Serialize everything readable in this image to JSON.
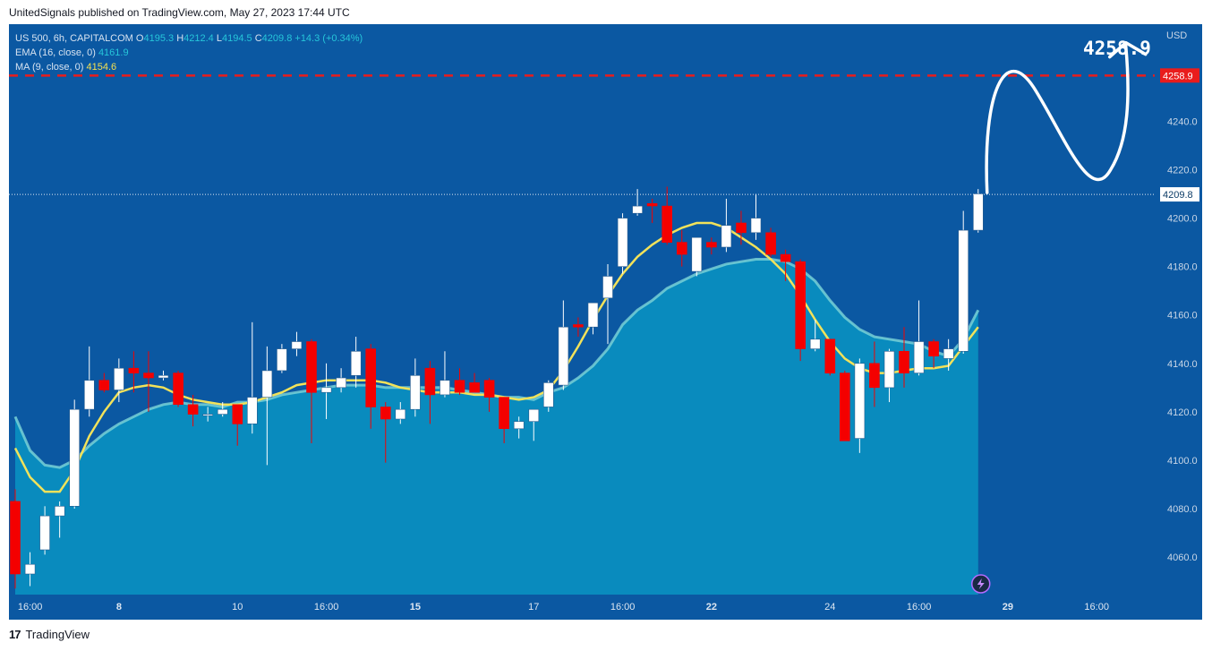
{
  "header": {
    "text": "UnitedSignals published on TradingView.com, May 27, 2023 17:44 UTC"
  },
  "legend": {
    "symbol": "US 500, 6h, CAPITALCOM",
    "o_key": "O",
    "o_val": "4195.3",
    "h_key": "H",
    "h_val": "4212.4",
    "l_key": "L",
    "l_val": "4194.5",
    "c_key": "C",
    "c_val": "4209.8",
    "change": "+14.3 (+0.34%)",
    "ema_label": "EMA (16, close, 0)",
    "ema_val": "4161.9",
    "ma_label": "MA (9, close, 0)",
    "ma_val": "4154.6"
  },
  "footer": {
    "logo": "17",
    "brand": "TradingView"
  },
  "colors": {
    "background": "#0b58a2",
    "up": "#ffffff",
    "down": "#f40000",
    "ema_fill": "#0a8ec0",
    "ema_line": "#7ed6d8",
    "ma_line": "#f2e25a",
    "target_line": "#e91c1c"
  },
  "chart_data": {
    "type": "candlestick",
    "currency": "USD",
    "y_ticks": [
      4060,
      4080,
      4100,
      4120,
      4140,
      4160,
      4180,
      4200,
      4220,
      4240
    ],
    "ylim": [
      4044.5,
      4280.1
    ],
    "x_tick_labels": [
      "16:00",
      "8",
      "10",
      "16:00",
      "15",
      "17",
      "16:00",
      "22",
      "24",
      "16:00",
      "29",
      "16:00"
    ],
    "x_tick_index": [
      1,
      7,
      15,
      21,
      27,
      35,
      41,
      47,
      55,
      61,
      67,
      73
    ],
    "x_tick_bold": [
      false,
      true,
      false,
      false,
      true,
      false,
      false,
      true,
      false,
      false,
      true,
      false
    ],
    "candles": [
      [
        4083,
        4088,
        4047,
        4053
      ],
      [
        4053,
        4062,
        4048,
        4057
      ],
      [
        4063,
        4081,
        4061,
        4077
      ],
      [
        4077,
        4083,
        4068,
        4081
      ],
      [
        4081,
        4125,
        4080,
        4121
      ],
      [
        4121,
        4147,
        4118,
        4133
      ],
      [
        4133,
        4136,
        4128,
        4129
      ],
      [
        4129,
        4142,
        4124,
        4138
      ],
      [
        4138,
        4145,
        4128,
        4136
      ],
      [
        4136,
        4145,
        4120,
        4134
      ],
      [
        4134,
        4137,
        4133,
        4135
      ],
      [
        4136,
        4137,
        4122,
        4123
      ],
      [
        4123,
        4127,
        4114,
        4119
      ],
      [
        4119,
        4122,
        4116,
        4119
      ],
      [
        4119,
        4124,
        4118,
        4121
      ],
      [
        4123,
        4123,
        4106,
        4115
      ],
      [
        4115,
        4157,
        4111,
        4126
      ],
      [
        4126,
        4147,
        4098,
        4137
      ],
      [
        4137,
        4148,
        4136,
        4146
      ],
      [
        4146,
        4153,
        4143,
        4149
      ],
      [
        4149,
        4150,
        4107,
        4128
      ],
      [
        4128,
        4140,
        4117,
        4130
      ],
      [
        4130,
        4138,
        4128,
        4134
      ],
      [
        4135,
        4151,
        4130,
        4145
      ],
      [
        4146,
        4148,
        4113,
        4122
      ],
      [
        4122,
        4124,
        4099,
        4117
      ],
      [
        4117,
        4124,
        4115,
        4121
      ],
      [
        4121,
        4142,
        4118,
        4135
      ],
      [
        4138,
        4141,
        4115,
        4127
      ],
      [
        4127,
        4145,
        4126,
        4133
      ],
      [
        4133,
        4138,
        4127,
        4128
      ],
      [
        4132,
        4136,
        4128,
        4128
      ],
      [
        4133,
        4134,
        4120,
        4126
      ],
      [
        4126,
        4126,
        4107,
        4113
      ],
      [
        4113,
        4118,
        4109,
        4116
      ],
      [
        4116,
        4120,
        4108,
        4121
      ],
      [
        4122,
        4133,
        4120,
        4132
      ],
      [
        4131,
        4166,
        4129,
        4155
      ],
      [
        4156,
        4159,
        4151,
        4155
      ],
      [
        4155,
        4164,
        4152,
        4165
      ],
      [
        4167,
        4181,
        4148,
        4176
      ],
      [
        4180,
        4202,
        4177,
        4200
      ],
      [
        4202,
        4212,
        4201,
        4205
      ],
      [
        4206,
        4208,
        4198,
        4205
      ],
      [
        4205,
        4213,
        4189,
        4190
      ],
      [
        4190,
        4195,
        4180,
        4185
      ],
      [
        4178,
        4192,
        4176,
        4192
      ],
      [
        4190,
        4192,
        4185,
        4188
      ],
      [
        4188,
        4208,
        4186,
        4197
      ],
      [
        4198,
        4203,
        4189,
        4194
      ],
      [
        4194,
        4210,
        4191,
        4200
      ],
      [
        4194,
        4196,
        4184,
        4185
      ],
      [
        4185,
        4187,
        4174,
        4182
      ],
      [
        4182,
        4183,
        4141,
        4146
      ],
      [
        4146,
        4158,
        4145,
        4150
      ],
      [
        4150,
        4150,
        4135,
        4136
      ],
      [
        4136,
        4137,
        4108,
        4108
      ],
      [
        4109,
        4142,
        4103,
        4140
      ],
      [
        4140,
        4149,
        4122,
        4130
      ],
      [
        4130,
        4146,
        4124,
        4145
      ],
      [
        4145,
        4155,
        4130,
        4136
      ],
      [
        4136,
        4166,
        4135,
        4149
      ],
      [
        4149,
        4150,
        4138,
        4143
      ],
      [
        4142,
        4150,
        4137,
        4146
      ],
      [
        4145,
        4203,
        4144,
        4195
      ],
      [
        4195,
        4212,
        4194,
        4210
      ]
    ],
    "ema16": [
      4118,
      4104,
      4098,
      4097,
      4100,
      4106,
      4111,
      4115,
      4118,
      4121,
      4123,
      4124,
      4123,
      4123,
      4122,
      4124,
      4124,
      4125,
      4127,
      4128,
      4129,
      4130,
      4131,
      4131,
      4131,
      4130,
      4130,
      4130,
      4130,
      4130,
      4129,
      4128,
      4127,
      4126,
      4126,
      4125,
      4128,
      4130,
      4134,
      4139,
      4146,
      4156,
      4162,
      4166,
      4171,
      4174,
      4177,
      4179,
      4181,
      4182,
      4183,
      4183,
      4182,
      4179,
      4174,
      4166,
      4159,
      4154,
      4151,
      4150,
      4149,
      4148,
      4145,
      4143,
      4150,
      4162
    ],
    "ma9": [
      4105,
      4093,
      4087,
      4087,
      4096,
      4110,
      4120,
      4128,
      4130,
      4131,
      4130,
      4127,
      4125,
      4124,
      4123,
      4123,
      4124,
      4126,
      4128,
      4131,
      4132,
      4133,
      4133,
      4133,
      4133,
      4132,
      4130,
      4129,
      4128,
      4128,
      4128,
      4127,
      4127,
      4126,
      4125,
      4126,
      4129,
      4137,
      4147,
      4158,
      4168,
      4177,
      4184,
      4189,
      4193,
      4196,
      4198,
      4198,
      4196,
      4192,
      4188,
      4183,
      4177,
      4168,
      4158,
      4149,
      4142,
      4138,
      4136,
      4136,
      4137,
      4138,
      4138,
      4139,
      4147,
      4155
    ],
    "last_price": 4209.8,
    "last_price_label": "4209.8",
    "target_price": 4258.9,
    "target_label": "4258.9",
    "target_tag": "4258.9",
    "projection": "up-down-up arrow to target"
  }
}
